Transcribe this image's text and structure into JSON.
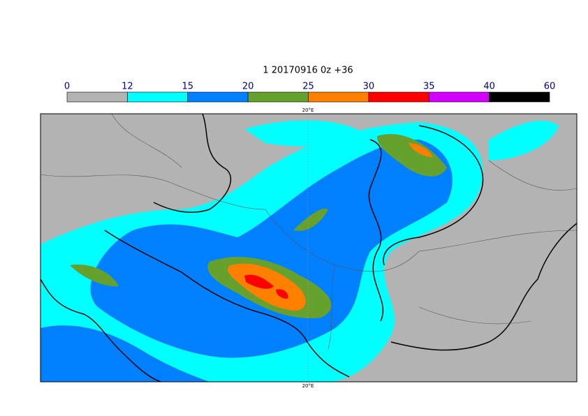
{
  "title": "1 20170916 0z +36",
  "colorbar": {
    "ticks": [
      0,
      12,
      15,
      20,
      25,
      30,
      35,
      40,
      60
    ],
    "colors": [
      "#b3b3b3",
      "#00ffff",
      "#0080ff",
      "#66a12e",
      "#ff8000",
      "#ff0000",
      "#d400ff",
      "#000000"
    ]
  },
  "map": {
    "lon_label_top": "20°E",
    "lon_label_bottom": "20°E"
  }
}
